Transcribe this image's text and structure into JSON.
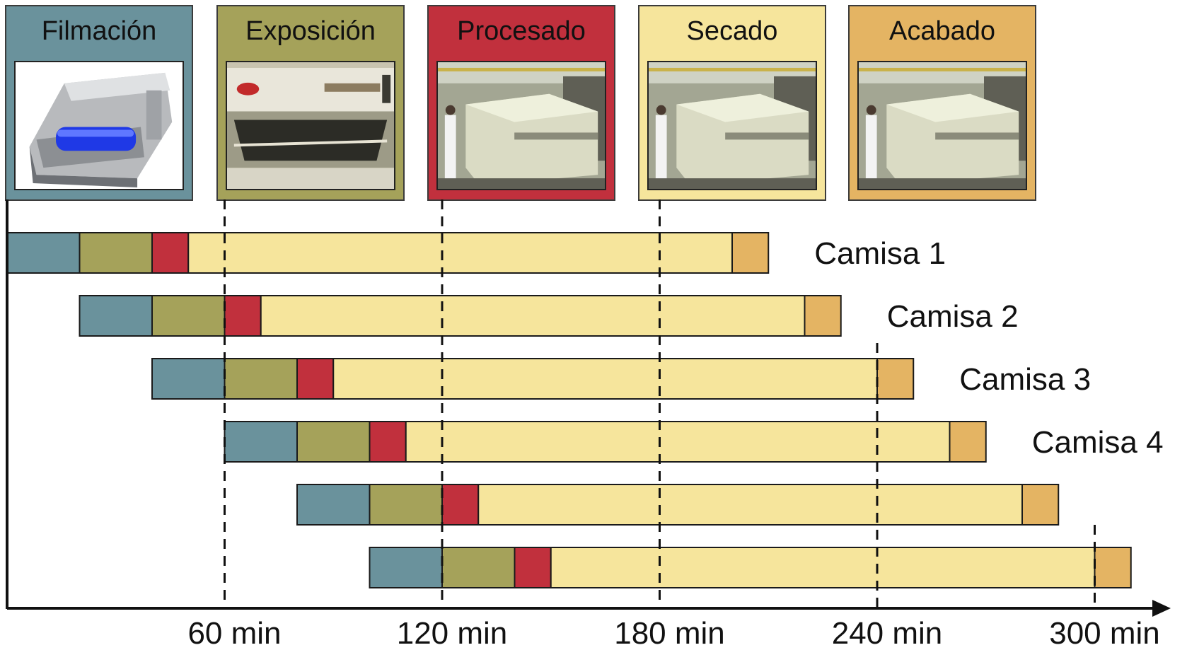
{
  "stages": [
    {
      "key": "filmacion",
      "label": "Filmación",
      "color": "#6a929c",
      "photo": "plate-imager-photo"
    },
    {
      "key": "exposicion",
      "label": "Exposición",
      "color": "#a5a25a",
      "photo": "exposure-unit-photo"
    },
    {
      "key": "procesado",
      "label": "Procesado",
      "color": "#c1303d",
      "photo": "processor-machine-photo"
    },
    {
      "key": "secado",
      "label": "Secado",
      "color": "#f6e59c",
      "photo": "dryer-machine-photo"
    },
    {
      "key": "acabado",
      "label": "Acabado",
      "color": "#e4b463",
      "photo": "finishing-machine-photo"
    }
  ],
  "chart_data": {
    "type": "bar",
    "subtype": "gantt",
    "unit": "min",
    "stage_order": [
      "Filmación",
      "Exposición",
      "Procesado",
      "Secado",
      "Acabado"
    ],
    "stage_durations": [
      20,
      20,
      10,
      150,
      10
    ],
    "stagger": 20,
    "series": [
      {
        "name": "Camisa 1",
        "start": 0
      },
      {
        "name": "Camisa 2",
        "start": 20
      },
      {
        "name": "Camisa 3",
        "start": 40
      },
      {
        "name": "Camisa 4",
        "start": 60
      },
      {
        "name": "",
        "start": 80
      },
      {
        "name": "",
        "start": 100
      }
    ],
    "x_ticks": [
      60,
      120,
      180,
      240,
      300
    ],
    "x_tick_labels": [
      "60 min",
      "120 min",
      "180 min",
      "240 min",
      "300 min"
    ],
    "xlim": [
      0,
      320
    ]
  }
}
